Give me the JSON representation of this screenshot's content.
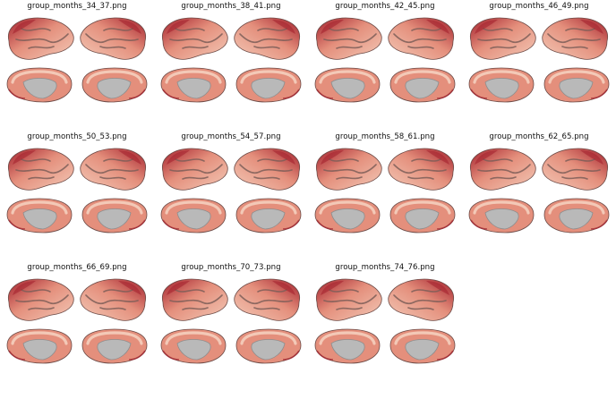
{
  "figure": {
    "panels": [
      {
        "title": "group_months_34_37.png"
      },
      {
        "title": "group_months_38_41.png"
      },
      {
        "title": "group_months_42_45.png"
      },
      {
        "title": "group_months_46_49.png"
      },
      {
        "title": "group_months_50_53.png"
      },
      {
        "title": "group_months_54_57.png"
      },
      {
        "title": "group_months_58_61.png"
      },
      {
        "title": "group_months_62_65.png"
      },
      {
        "title": "group_months_66_69.png"
      },
      {
        "title": "group_months_70_73.png"
      },
      {
        "title": "group_months_74_76.png"
      }
    ],
    "colors": {
      "surface_light": "#f3c9b7",
      "surface_mid": "#e48f7c",
      "surface_dark": "#a31f2c",
      "sulcus": "#7d5e58",
      "medial_wall": "#b9b9b9",
      "medial_wall_dark": "#8e8e8e"
    }
  }
}
